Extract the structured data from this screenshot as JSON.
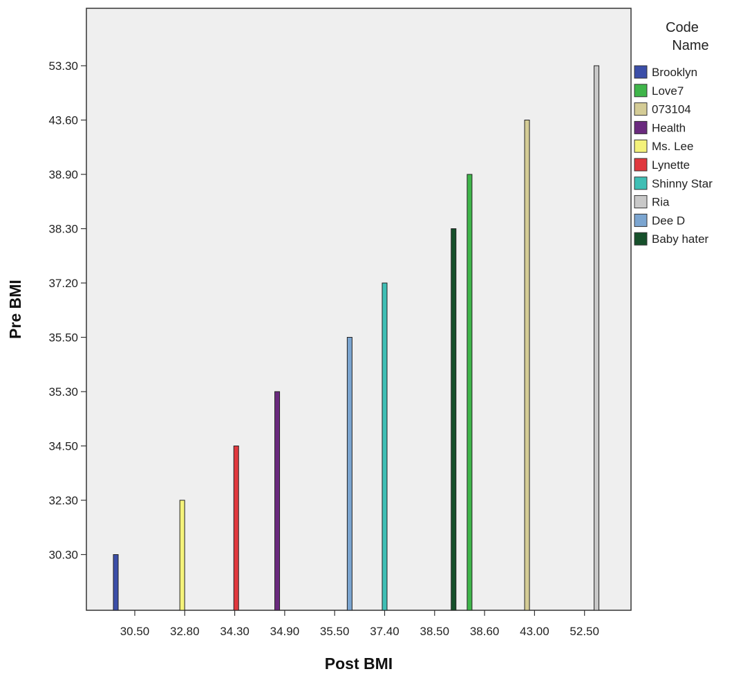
{
  "chart_data": {
    "type": "bar",
    "xlabel": "Post BMI",
    "ylabel": "Pre BMI",
    "legend_title": [
      "Code",
      "Name"
    ],
    "legend_position": "right",
    "grid": false,
    "background": "#efefef",
    "categories": [
      "30.50",
      "32.80",
      "34.30",
      "34.90",
      "35.50",
      "37.40",
      "38.50",
      "38.60",
      "43.00",
      "52.50"
    ],
    "y_ticks": [
      "30.30",
      "32.30",
      "34.50",
      "35.30",
      "35.50",
      "37.20",
      "38.30",
      "38.90",
      "43.60",
      "53.30"
    ],
    "series": [
      {
        "name": "Brooklyn",
        "color": "#3b4ea8",
        "category": "30.50",
        "value": "30.30",
        "offset": -0.38
      },
      {
        "name": "Love7",
        "color": "#3fb54a",
        "category": "38.60",
        "value": "38.90",
        "offset": -0.3
      },
      {
        "name": "073104",
        "color": "#d4cc96",
        "category": "43.00",
        "value": "43.60",
        "offset": -0.15
      },
      {
        "name": "Health",
        "color": "#6a2a7e",
        "category": "34.90",
        "value": "35.30",
        "offset": -0.15
      },
      {
        "name": "Ms. Lee",
        "color": "#f4f27a",
        "category": "32.80",
        "value": "32.30",
        "offset": -0.05
      },
      {
        "name": "Lynette",
        "color": "#e0383e",
        "category": "34.30",
        "value": "34.50",
        "offset": 0.03
      },
      {
        "name": "Shinny Star",
        "color": "#3fbfb5",
        "category": "37.40",
        "value": "37.20",
        "offset": 0.0
      },
      {
        "name": "Ria",
        "color": "#c8c8c8",
        "category": "52.50",
        "value": "53.30",
        "offset": 0.24
      },
      {
        "name": "Dee D",
        "color": "#7ba5d0",
        "category": "35.50",
        "value": "35.50",
        "offset": 0.3
      },
      {
        "name": "Baby hater",
        "color": "#16502b",
        "category": "38.50",
        "value": "38.30",
        "offset": 0.38
      }
    ]
  }
}
